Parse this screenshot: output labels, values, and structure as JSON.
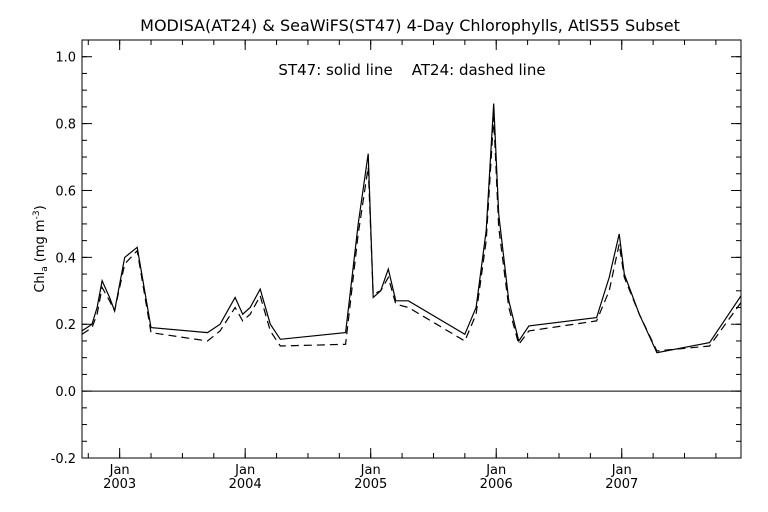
{
  "chart_data": {
    "type": "line",
    "title": "MODISA(AT24) & SeaWiFS(ST47) 4-Day Chlorophylls, AtlS55 Subset",
    "annotation": "ST47: solid line    AT24: dashed line",
    "ylabel": "Chl",
    "ylabel_sub": "a",
    "ylabel_units": "(mg m",
    "ylabel_sup": "-3",
    "ylabel_close": ")",
    "ylim": [
      -0.2,
      1.05
    ],
    "xlim": [
      2002.7,
      2007.95
    ],
    "y_ticks": [
      -0.2,
      0.0,
      0.2,
      0.4,
      0.6,
      0.8,
      1.0
    ],
    "y_tick_labels": [
      "-0.2",
      "0.0",
      "0.2",
      "0.4",
      "0.6",
      "0.8",
      "1.0"
    ],
    "x_ticks": [
      {
        "x": 2003.0,
        "month": "Jan",
        "year": "2003"
      },
      {
        "x": 2004.0,
        "month": "Jan",
        "year": "2004"
      },
      {
        "x": 2005.0,
        "month": "Jan",
        "year": "2005"
      },
      {
        "x": 2006.0,
        "month": "Jan",
        "year": "2006"
      },
      {
        "x": 2007.0,
        "month": "Jan",
        "year": "2007"
      }
    ],
    "zero_line": 0.0,
    "series": [
      {
        "name": "ST47",
        "style": "solid",
        "x": [
          2002.7,
          2002.78,
          2002.82,
          2002.86,
          2002.92,
          2002.96,
          2003.04,
          2003.14,
          2003.25,
          2003.7,
          2003.8,
          2003.92,
          2003.98,
          2004.04,
          2004.12,
          2004.2,
          2004.28,
          2004.8,
          2004.9,
          2004.98,
          2005.02,
          2005.08,
          2005.14,
          2005.2,
          2005.3,
          2005.75,
          2005.84,
          2005.92,
          2005.98,
          2006.02,
          2006.1,
          2006.18,
          2006.26,
          2006.8,
          2006.9,
          2006.98,
          2007.02,
          2007.14,
          2007.28,
          2007.7,
          2007.95
        ],
        "y": [
          0.18,
          0.2,
          0.25,
          0.33,
          0.28,
          0.24,
          0.4,
          0.43,
          0.19,
          0.175,
          0.2,
          0.28,
          0.23,
          0.25,
          0.305,
          0.2,
          0.155,
          0.175,
          0.5,
          0.71,
          0.28,
          0.3,
          0.365,
          0.27,
          0.27,
          0.17,
          0.25,
          0.48,
          0.86,
          0.53,
          0.27,
          0.15,
          0.195,
          0.22,
          0.34,
          0.47,
          0.35,
          0.23,
          0.115,
          0.145,
          0.285
        ]
      },
      {
        "name": "AT24",
        "style": "dashed",
        "x": [
          2002.7,
          2002.78,
          2002.82,
          2002.86,
          2002.92,
          2002.96,
          2003.04,
          2003.14,
          2003.25,
          2003.7,
          2003.8,
          2003.92,
          2003.98,
          2004.04,
          2004.12,
          2004.2,
          2004.28,
          2004.8,
          2004.9,
          2004.98,
          2005.02,
          2005.08,
          2005.14,
          2005.2,
          2005.3,
          2005.75,
          2005.84,
          2005.92,
          2005.98,
          2006.02,
          2006.1,
          2006.18,
          2006.26,
          2006.8,
          2006.9,
          2006.98,
          2007.02,
          2007.14,
          2007.28,
          2007.7,
          2007.95
        ],
        "y": [
          0.17,
          0.19,
          0.23,
          0.31,
          0.27,
          0.24,
          0.38,
          0.42,
          0.175,
          0.15,
          0.18,
          0.25,
          0.21,
          0.23,
          0.285,
          0.18,
          0.135,
          0.14,
          0.47,
          0.67,
          0.29,
          0.3,
          0.34,
          0.26,
          0.25,
          0.15,
          0.23,
          0.45,
          0.82,
          0.49,
          0.25,
          0.14,
          0.18,
          0.21,
          0.3,
          0.44,
          0.34,
          0.23,
          0.12,
          0.135,
          0.265
        ]
      }
    ]
  }
}
